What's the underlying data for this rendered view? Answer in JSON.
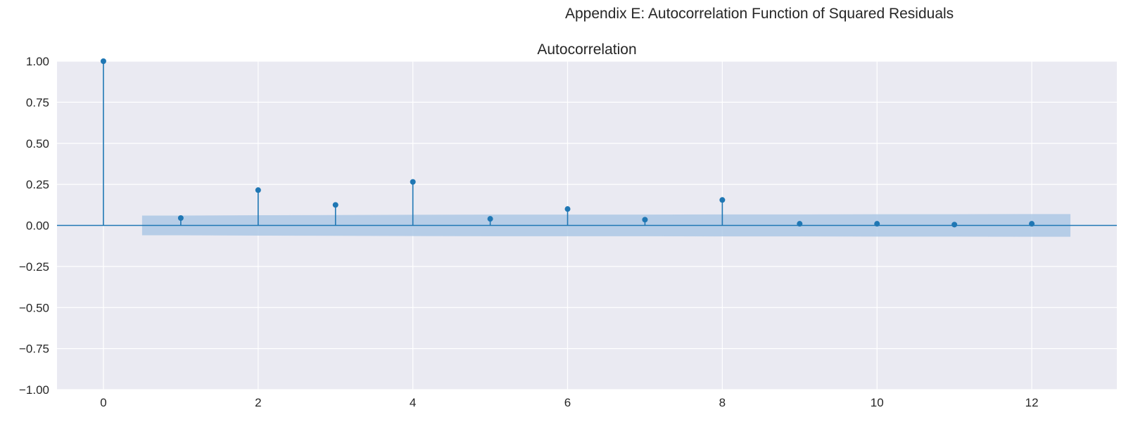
{
  "suptitle": "Appendix E: Autocorrelation Function of Squared Residuals",
  "chart_data": {
    "type": "stem",
    "title": "Autocorrelation",
    "xlabel": "",
    "ylabel": "",
    "xlim": [
      -0.6,
      13.1
    ],
    "ylim": [
      -1.0,
      1.0
    ],
    "xticks": [
      0,
      2,
      4,
      6,
      8,
      10,
      12
    ],
    "yticks": [
      -1.0,
      -0.75,
      -0.5,
      -0.25,
      0.0,
      0.25,
      0.5,
      0.75,
      1.0
    ],
    "ytick_labels": [
      "−1.00",
      "−0.75",
      "−0.50",
      "−0.25",
      "0.00",
      "0.25",
      "0.50",
      "0.75",
      "1.00"
    ],
    "grid": true,
    "lags": [
      0,
      1,
      2,
      3,
      4,
      5,
      6,
      7,
      8,
      9,
      10,
      11,
      12
    ],
    "acf": [
      1.0,
      0.045,
      0.215,
      0.125,
      0.265,
      0.04,
      0.1,
      0.035,
      0.155,
      0.01,
      0.01,
      0.005,
      0.01
    ],
    "confidence_band": {
      "x": [
        0.5,
        1,
        2,
        3,
        4,
        5,
        6,
        7,
        8,
        9,
        10,
        11,
        12,
        12.5
      ],
      "upper": [
        0.06,
        0.06,
        0.062,
        0.063,
        0.065,
        0.066,
        0.066,
        0.066,
        0.067,
        0.067,
        0.068,
        0.068,
        0.069,
        0.069
      ],
      "lower": [
        -0.06,
        -0.06,
        -0.062,
        -0.063,
        -0.065,
        -0.066,
        -0.066,
        -0.066,
        -0.067,
        -0.067,
        -0.068,
        -0.068,
        -0.069,
        -0.069
      ]
    },
    "colors": {
      "stem": "#1f77b4",
      "band": "#a9c6e3",
      "axes_bg": "#eaeaf2",
      "grid": "#ffffff",
      "text": "#262626"
    }
  }
}
